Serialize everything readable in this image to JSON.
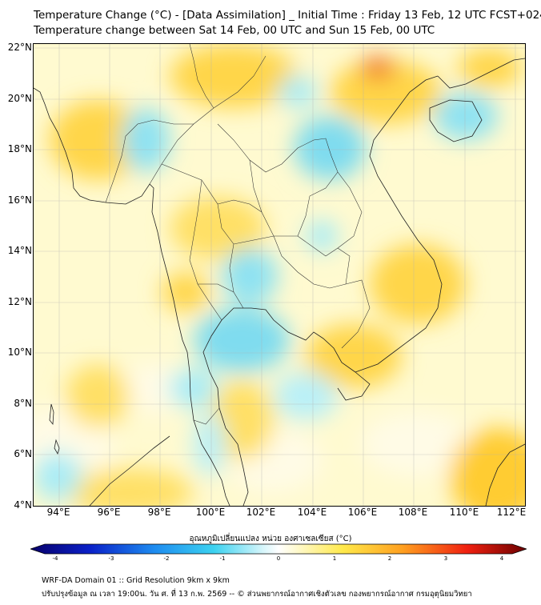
{
  "header": {
    "title_line1": "Temperature Change (°C) - [Data Assimilation] _ Initial Time : Friday 13 Feb, 12 UTC FCST+024",
    "title_line2": "Temperature change between Sat 14 Feb, 00 UTC and Sun 15 Feb, 00 UTC"
  },
  "map": {
    "lat_labels": [
      "22°N",
      "20°N",
      "18°N",
      "16°N",
      "14°N",
      "12°N",
      "10°N",
      "8°N",
      "6°N",
      "4°N"
    ],
    "lon_labels": [
      "94°E",
      "96°E",
      "98°E",
      "100°E",
      "102°E",
      "104°E",
      "106°E",
      "108°E",
      "110°E",
      "112°E"
    ],
    "colors": {
      "warm": "#ffe066",
      "hot": "#f07020",
      "neutral": "#fffbe0",
      "cool": "#8ee2f2",
      "coast": "#222222"
    }
  },
  "colorbar": {
    "title": "อุณหภูมิเปลี่ยนแปลง หน่วย องศาเซลเซียส (°C)",
    "ticks": [
      "-4",
      "-3",
      "-2",
      "-1",
      "0",
      "1",
      "2",
      "3",
      "4"
    ],
    "range": [
      -4,
      4
    ]
  },
  "footer": {
    "line1": "WRF-DA Domain 01 :: Grid Resolution 9km x 9km",
    "line2": "ปรับปรุงข้อมูล ณ เวลา 19:00น. วัน ศ. ที่ 13 ก.พ. 2569 -- © ส่วนพยากรณ์อากาศเชิงตัวเลข กองพยากรณ์อากาศ กรมอุตุนิยมวิทยา"
  }
}
